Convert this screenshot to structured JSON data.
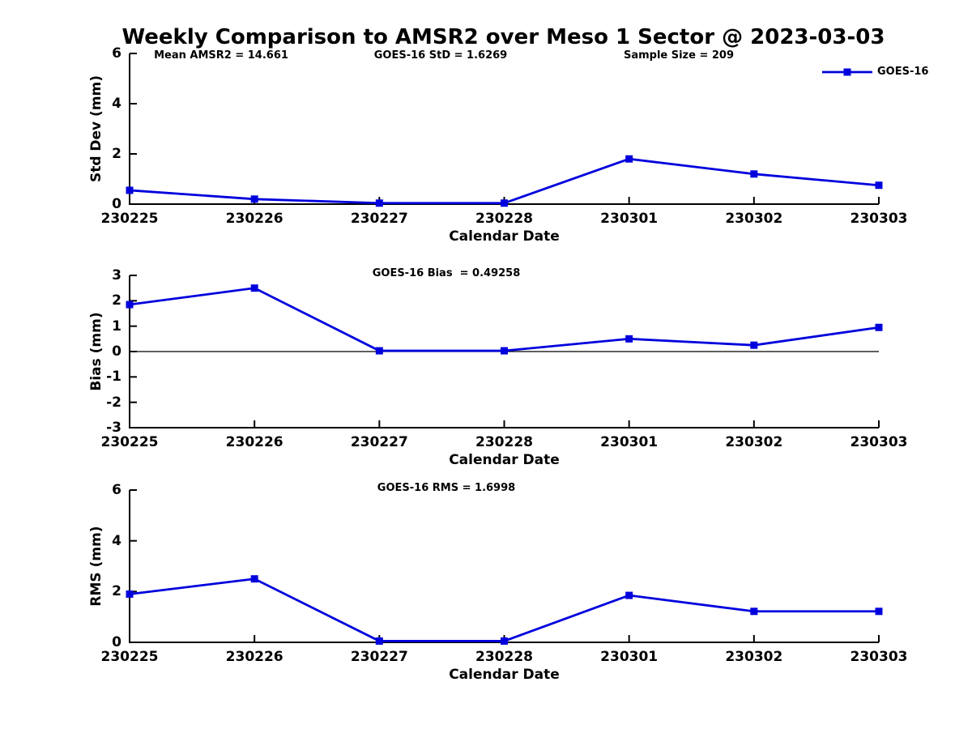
{
  "title": "Weekly Comparison to AMSR2 over Meso 1 Sector @ 2023-03-03",
  "legend": {
    "label": "GOES-16"
  },
  "colors": {
    "series": "#0000dd",
    "axis": "#000000",
    "zero_line": "#000000",
    "background": "#ffffff",
    "text": "#000000"
  },
  "chart_data": [
    {
      "type": "line",
      "name": "std-dev-plot",
      "x": [
        "230225",
        "230226",
        "230227",
        "230228",
        "230301",
        "230302",
        "230303"
      ],
      "series": [
        {
          "name": "GOES-16",
          "values": [
            0.55,
            0.2,
            0.04,
            0.04,
            1.8,
            1.2,
            0.75
          ]
        }
      ],
      "xlabel": "Calendar Date",
      "ylabel": "Std Dev (mm)",
      "ylim": [
        0,
        6
      ],
      "yticks": [
        "0",
        "2",
        "4",
        "6"
      ],
      "grid": false,
      "zero_line": false,
      "legend_position": "top-right",
      "annotations": [
        "Mean AMSR2 = 14.661",
        "GOES-16 StD = 1.6269",
        "Sample Size = 209"
      ]
    },
    {
      "type": "line",
      "name": "bias-plot",
      "x": [
        "230225",
        "230226",
        "230227",
        "230228",
        "230301",
        "230302",
        "230303"
      ],
      "series": [
        {
          "name": "GOES-16",
          "values": [
            1.85,
            2.5,
            0.03,
            0.03,
            0.5,
            0.25,
            0.95
          ]
        }
      ],
      "xlabel": "Calendar Date",
      "ylabel": "Bias (mm)",
      "ylim": [
        -3,
        3
      ],
      "yticks": [
        "-3",
        "-2",
        "-1",
        "0",
        "1",
        "2",
        "3"
      ],
      "grid": false,
      "zero_line": true,
      "annotations": [
        "GOES-16 Bias  = 0.49258"
      ]
    },
    {
      "type": "line",
      "name": "rms-plot",
      "x": [
        "230225",
        "230226",
        "230227",
        "230228",
        "230301",
        "230302",
        "230303"
      ],
      "series": [
        {
          "name": "GOES-16",
          "values": [
            1.9,
            2.5,
            0.05,
            0.05,
            1.85,
            1.22,
            1.22
          ]
        }
      ],
      "xlabel": "Calendar Date",
      "ylabel": "RMS (mm)",
      "ylim": [
        0,
        6
      ],
      "yticks": [
        "0",
        "2",
        "4",
        "6"
      ],
      "grid": false,
      "zero_line": false,
      "annotations": [
        "GOES-16 RMS = 1.6998"
      ]
    }
  ]
}
